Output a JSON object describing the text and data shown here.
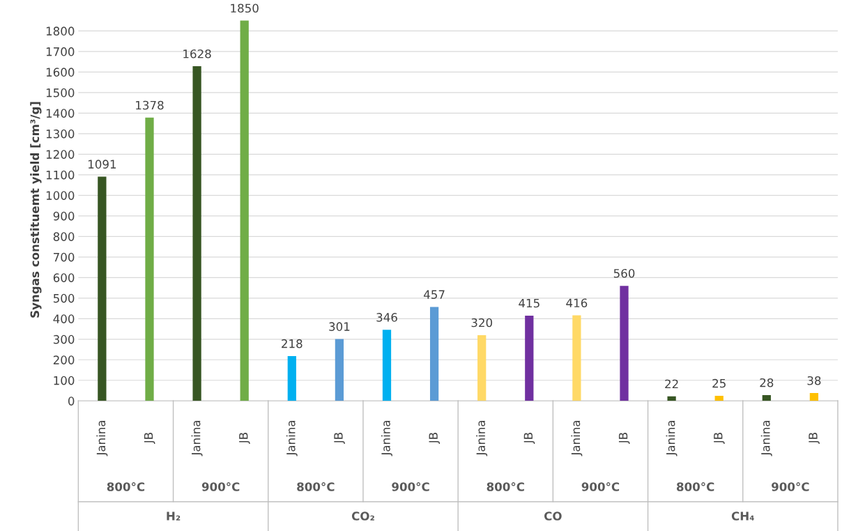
{
  "chart_data": {
    "type": "bar",
    "ylabel": "Syngas constituemt yield [cm³/g]",
    "categories": [
      "Janina",
      "JB",
      "Janina",
      "JB",
      "Janina",
      "JB",
      "Janina",
      "JB",
      "Janina",
      "JB",
      "Janina",
      "JB",
      "Janina",
      "JB",
      "Janina",
      "JB"
    ],
    "values": [
      1091,
      1378,
      1628,
      1850,
      218,
      301,
      346,
      457,
      320,
      415,
      416,
      560,
      22,
      25,
      28,
      38
    ],
    "colors": [
      "#375623",
      "#70ad47",
      "#375623",
      "#70ad47",
      "#00b0f0",
      "#5b9bd5",
      "#00b0f0",
      "#5b9bd5",
      "#ffd966",
      "#7030a0",
      "#ffd966",
      "#7030a0",
      "#375623",
      "#ffc000",
      "#375623",
      "#ffc000"
    ],
    "annotations": [
      "800°C",
      "900°C",
      "800°C",
      "900°C",
      "800°C",
      "900°C",
      "800°C",
      "900°C",
      "H₂",
      "CO₂",
      "CO",
      "CH₄"
    ],
    "ylim": [
      0,
      1860
    ],
    "yticks": [
      0,
      100,
      200,
      300,
      400,
      500,
      600,
      700,
      800,
      900,
      1000,
      1100,
      1200,
      1300,
      1400,
      1500,
      1600,
      1700,
      1800
    ],
    "grid": "y",
    "data_labels": true
  }
}
